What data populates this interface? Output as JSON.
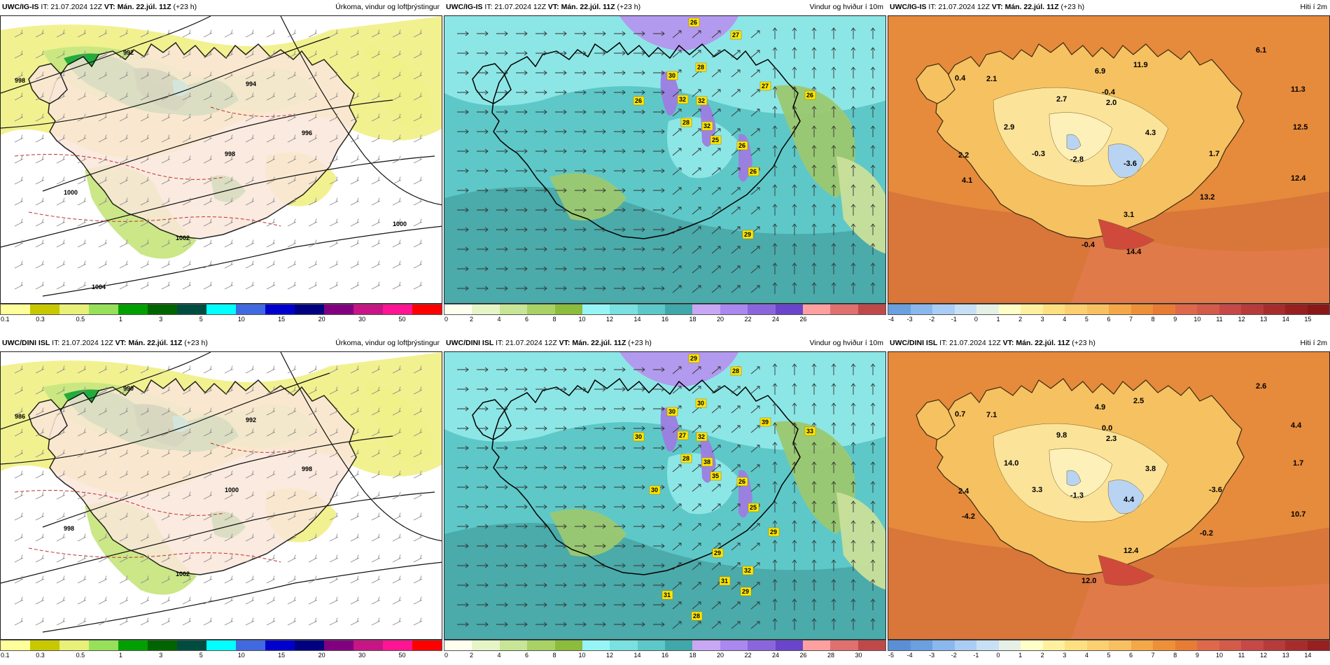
{
  "panels": [
    {
      "model": "UWC/IG-IS",
      "it_label": "IT:",
      "it_value": "21.07.2024 12Z",
      "vt_label": "VT:",
      "vt_value": "Mán. 22.júl. 11Z",
      "lead": "(+23 h)",
      "field_title": "Úrkoma, vindur og loftþrýstingur",
      "kind": "precip",
      "colors": [
        "#ffff99",
        "#c8c800",
        "#e8f078",
        "#96e05a",
        "#00a000",
        "#006400",
        "#004d40",
        "#00ffff",
        "#4169e1",
        "#0000cd",
        "#000080",
        "#800080",
        "#c71585",
        "#ff1493",
        "#ff0000"
      ],
      "ticks": [
        "0.1",
        "0.3",
        "0.5",
        "1",
        "3",
        "5",
        "10",
        "15",
        "20",
        "30",
        "50"
      ],
      "isobars": [
        "998",
        "992",
        "994",
        "996",
        "998",
        "1000",
        "1002",
        "1000",
        "1004"
      ],
      "values": []
    },
    {
      "model": "UWC/IG-IS",
      "it_label": "IT:",
      "it_value": "21.07.2024 12Z",
      "vt_label": "VT:",
      "vt_value": "Mán. 22.júl. 11Z",
      "lead": "(+23 h)",
      "field_title": "Vindur og hviður í 10m",
      "kind": "wind",
      "colors": [
        "#fffff0",
        "#e6f5c8",
        "#c8e696",
        "#a8d264",
        "#8cbc3c",
        "#96f5f5",
        "#7ae0e0",
        "#5cc8c8",
        "#40a8a8",
        "#c8a8f5",
        "#aa88ee",
        "#8a66dd",
        "#6a44cc",
        "#ffa0a0",
        "#e07070",
        "#c04848"
      ],
      "ticks": [
        "0",
        "2",
        "4",
        "6",
        "8",
        "10",
        "12",
        "14",
        "16",
        "18",
        "20",
        "22",
        "24",
        "26"
      ],
      "values": [
        "26",
        "27",
        "30",
        "28",
        "32",
        "32",
        "26",
        "28",
        "32",
        "27",
        "26",
        "26",
        "25",
        "26",
        "29"
      ]
    },
    {
      "model": "UWC/IG-IS",
      "it_label": "IT:",
      "it_value": "21.07.2024 12Z",
      "vt_label": "VT:",
      "vt_value": "Mán. 22.júl. 11Z",
      "lead": "(+23 h)",
      "field_title": "Hiti í 2m",
      "kind": "temp",
      "colors": [
        "#6a9fe0",
        "#8ab8ee",
        "#aacdf5",
        "#c8e0f5",
        "#e6f0e6",
        "#ffffc8",
        "#fff0a0",
        "#ffe080",
        "#fcd070",
        "#f8c060",
        "#f4a848",
        "#ee9038",
        "#e87c34",
        "#e0684a",
        "#d45a4a",
        "#c84848",
        "#b83a3a",
        "#a82c2c",
        "#982020",
        "#8a1818"
      ],
      "ticks": [
        "-4",
        "-3",
        "-2",
        "-1",
        "0",
        "1",
        "2",
        "3",
        "4",
        "5",
        "6",
        "7",
        "8",
        "9",
        "10",
        "11",
        "12",
        "13",
        "14",
        "15"
      ],
      "values": [
        "0.4",
        "2.1",
        "6.9",
        "11.9",
        "6.1",
        "-0.4",
        "11.3",
        "2.7",
        "2.0",
        "12.5",
        "2.9",
        "4.3",
        "2.2",
        "-0.3",
        "-2.8",
        "1.7",
        "4.1",
        "-3.6",
        "12.4",
        "3.1",
        "13.2",
        "-0.4",
        "14.4"
      ]
    },
    {
      "model": "UWC/DINI ISL",
      "it_label": "IT:",
      "it_value": "21.07.2024 12Z",
      "vt_label": "VT:",
      "vt_value": "Mán. 22.júl. 11Z",
      "lead": "(+23 h)",
      "field_title": "Úrkoma, vindur og loftþrýstingur",
      "kind": "precip",
      "colors": [
        "#ffff99",
        "#c8c800",
        "#e8f078",
        "#96e05a",
        "#00a000",
        "#006400",
        "#004d40",
        "#00ffff",
        "#4169e1",
        "#0000cd",
        "#000080",
        "#800080",
        "#c71585",
        "#ff1493",
        "#ff0000"
      ],
      "ticks": [
        "0.1",
        "0.3",
        "0.5",
        "1",
        "3",
        "5",
        "10",
        "15",
        "20",
        "30",
        "50"
      ],
      "isobars": [
        "986",
        "990",
        "992",
        "998",
        "1000",
        "998",
        "1002"
      ],
      "values": []
    },
    {
      "model": "UWC/DINI ISL",
      "it_label": "IT:",
      "it_value": "21.07.2024 12Z",
      "vt_label": "VT:",
      "vt_value": "Mán. 22.júl. 11Z",
      "lead": "(+23 h)",
      "field_title": "Vindur og hviður í 10m",
      "kind": "wind",
      "colors": [
        "#fffff0",
        "#e6f5c8",
        "#c8e696",
        "#a8d264",
        "#8cbc3c",
        "#96f5f5",
        "#7ae0e0",
        "#5cc8c8",
        "#40a8a8",
        "#c8a8f5",
        "#aa88ee",
        "#8a66dd",
        "#6a44cc",
        "#ffa0a0",
        "#e07070",
        "#c04848"
      ],
      "ticks": [
        "0",
        "2",
        "4",
        "6",
        "8",
        "10",
        "12",
        "14",
        "16",
        "18",
        "20",
        "22",
        "24",
        "26",
        "28",
        "30"
      ],
      "values": [
        "29",
        "28",
        "30",
        "30",
        "27",
        "32",
        "30",
        "28",
        "38",
        "39",
        "33",
        "26",
        "35",
        "25",
        "32",
        "29",
        "30",
        "29",
        "31",
        "29",
        "31",
        "28"
      ]
    },
    {
      "model": "UWC/DINI ISL",
      "it_label": "IT:",
      "it_value": "21.07.2024 12Z",
      "vt_label": "VT:",
      "vt_value": "Mán. 22.júl. 11Z",
      "lead": "(+23 h)",
      "field_title": "Hiti í 2m",
      "kind": "temp",
      "colors": [
        "#5a8fd8",
        "#6a9fe0",
        "#8ab8ee",
        "#aacdf5",
        "#c8e0f5",
        "#e6f0e6",
        "#ffffc8",
        "#fff0a0",
        "#ffe080",
        "#fcd070",
        "#f8c060",
        "#f4a848",
        "#ee9038",
        "#e87c34",
        "#e0684a",
        "#d45a4a",
        "#c84848",
        "#b83a3a",
        "#a82c2c",
        "#982020"
      ],
      "ticks": [
        "-5",
        "-4",
        "-3",
        "-2",
        "-1",
        "0",
        "1",
        "2",
        "3",
        "4",
        "5",
        "6",
        "7",
        "8",
        "9",
        "10",
        "11",
        "12",
        "13",
        "14"
      ],
      "values": [
        "0.7",
        "7.1",
        "4.9",
        "2.5",
        "2.6",
        "0.0",
        "4.4",
        "9.8",
        "2.3",
        "1.7",
        "14.0",
        "3.8",
        "2.4",
        "3.3",
        "-1.3",
        "-3.6",
        "-4.2",
        "4.4",
        "10.7",
        "12.4",
        "-0.2",
        "12.0"
      ]
    }
  ]
}
